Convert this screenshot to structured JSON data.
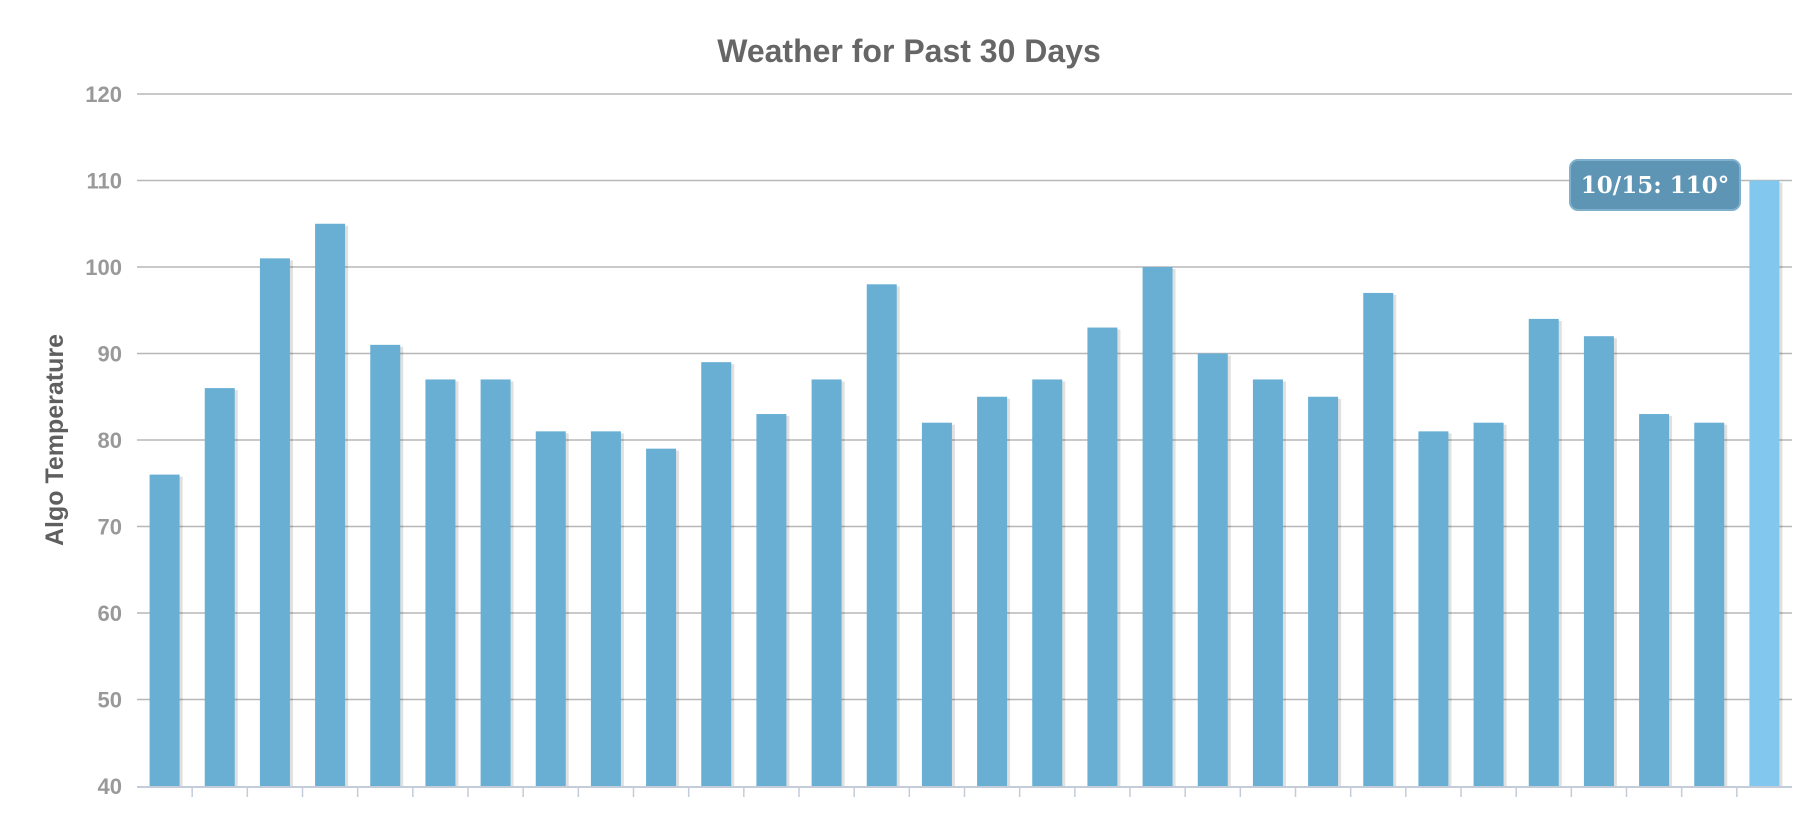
{
  "colors": {
    "bar": "#69afd4",
    "bar_highlight": "#82c8ee",
    "tooltip_bg": "#5f95b4",
    "title": "#666666",
    "tick_label": "#999999",
    "grid": "#b7b7b7"
  },
  "tooltip": {
    "text": "10/15: 110°"
  },
  "chart_data": {
    "type": "bar",
    "title": "Weather for Past 30 Days",
    "xlabel": "",
    "ylabel": "Algo Temperature",
    "ylim": [
      40,
      120
    ],
    "yticks": [
      "40",
      "50",
      "60",
      "70",
      "80",
      "90",
      "100",
      "110",
      "120"
    ],
    "grid": true,
    "highlighted_index": 29,
    "values": [
      76,
      86,
      101,
      105,
      91,
      87,
      87,
      81,
      81,
      79,
      89,
      83,
      87,
      98,
      82,
      85,
      87,
      93,
      100,
      90,
      87,
      85,
      97,
      81,
      82,
      94,
      92,
      83,
      82,
      110
    ]
  }
}
